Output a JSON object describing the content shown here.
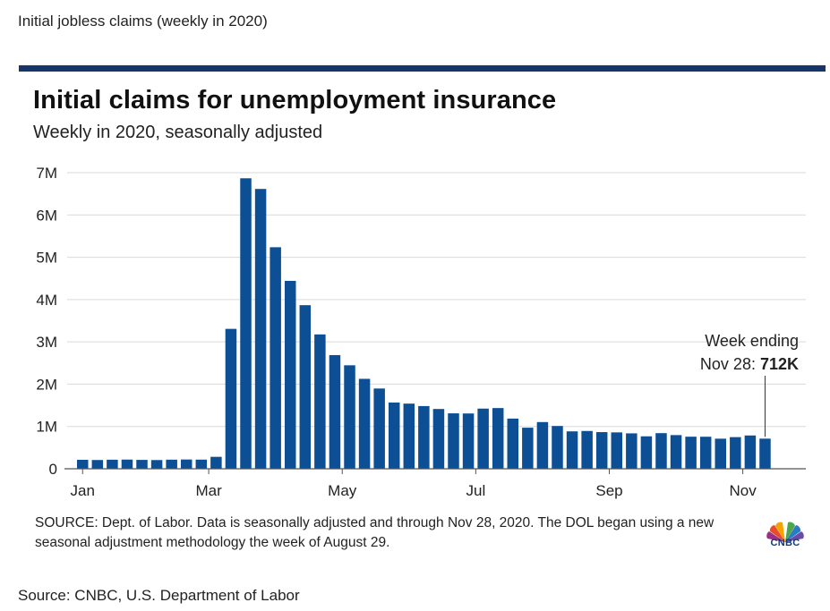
{
  "page": {
    "caption": "Initial jobless claims (weekly in 2020)",
    "source": "Source: CNBC, U.S. Department of Labor"
  },
  "chart_data": {
    "type": "bar",
    "title": "Initial claims for unemployment insurance",
    "subtitle": "Weekly in 2020, seasonally adjusted",
    "xlabel": "",
    "ylabel": "",
    "ylim": [
      0,
      7000000
    ],
    "yticks": [
      0,
      1000000,
      2000000,
      3000000,
      4000000,
      5000000,
      6000000,
      7000000
    ],
    "ytick_labels": [
      "0",
      "1M",
      "2M",
      "3M",
      "4M",
      "5M",
      "6M",
      "7M"
    ],
    "xtick_labels": [
      "Jan",
      "Mar",
      "May",
      "Jul",
      "Sep",
      "Nov"
    ],
    "xtick_week_index": [
      0,
      8.5,
      17.5,
      26.5,
      35.5,
      44.5
    ],
    "grid": true,
    "bar_color": "#0d4f95",
    "series": [
      {
        "values": [
          212000,
          207000,
          214000,
          217000,
          210000,
          206000,
          215000,
          219000,
          216000,
          282000,
          3307000,
          6867000,
          6615000,
          5237000,
          4442000,
          3867000,
          3176000,
          2687000,
          2446000,
          2126000,
          1897000,
          1566000,
          1540000,
          1482000,
          1413000,
          1310000,
          1307000,
          1422000,
          1435000,
          1186000,
          971000,
          1104000,
          1011000,
          884000,
          893000,
          866000,
          860000,
          837000,
          767000,
          842000,
          796000,
          758000,
          757000,
          711000,
          748000,
          787000,
          712000
        ]
      }
    ],
    "annotation": {
      "line1": "Week ending",
      "line2_prefix": "Nov 28: ",
      "line2_value": "712K"
    },
    "source_note": "SOURCE: Dept. of Labor. Data is seasonally adjusted and through Nov 28, 2020. The DOL began using a new seasonal adjustment methodology the week of August 29."
  },
  "logo": {
    "text": "CNBC"
  }
}
